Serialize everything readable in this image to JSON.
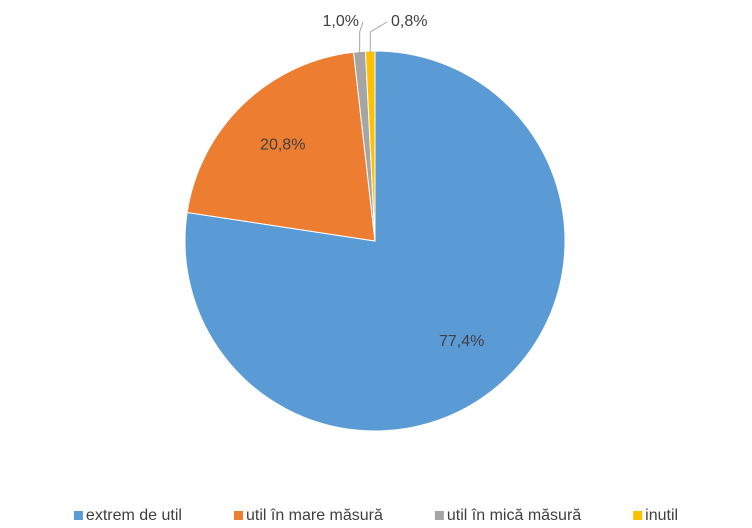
{
  "chart_data": {
    "type": "pie",
    "categories": [
      "extrem de util",
      "util în mare măsură",
      "util în mică măsură",
      "inutil"
    ],
    "values": [
      77.4,
      20.8,
      1.0,
      0.8
    ],
    "value_labels": [
      "77,4%",
      "20,8%",
      "1,0%",
      "0,8%"
    ],
    "colors": [
      "#5b9bd5",
      "#ed7d31",
      "#a5a5a5",
      "#ffc000"
    ],
    "legend": "bottom"
  }
}
